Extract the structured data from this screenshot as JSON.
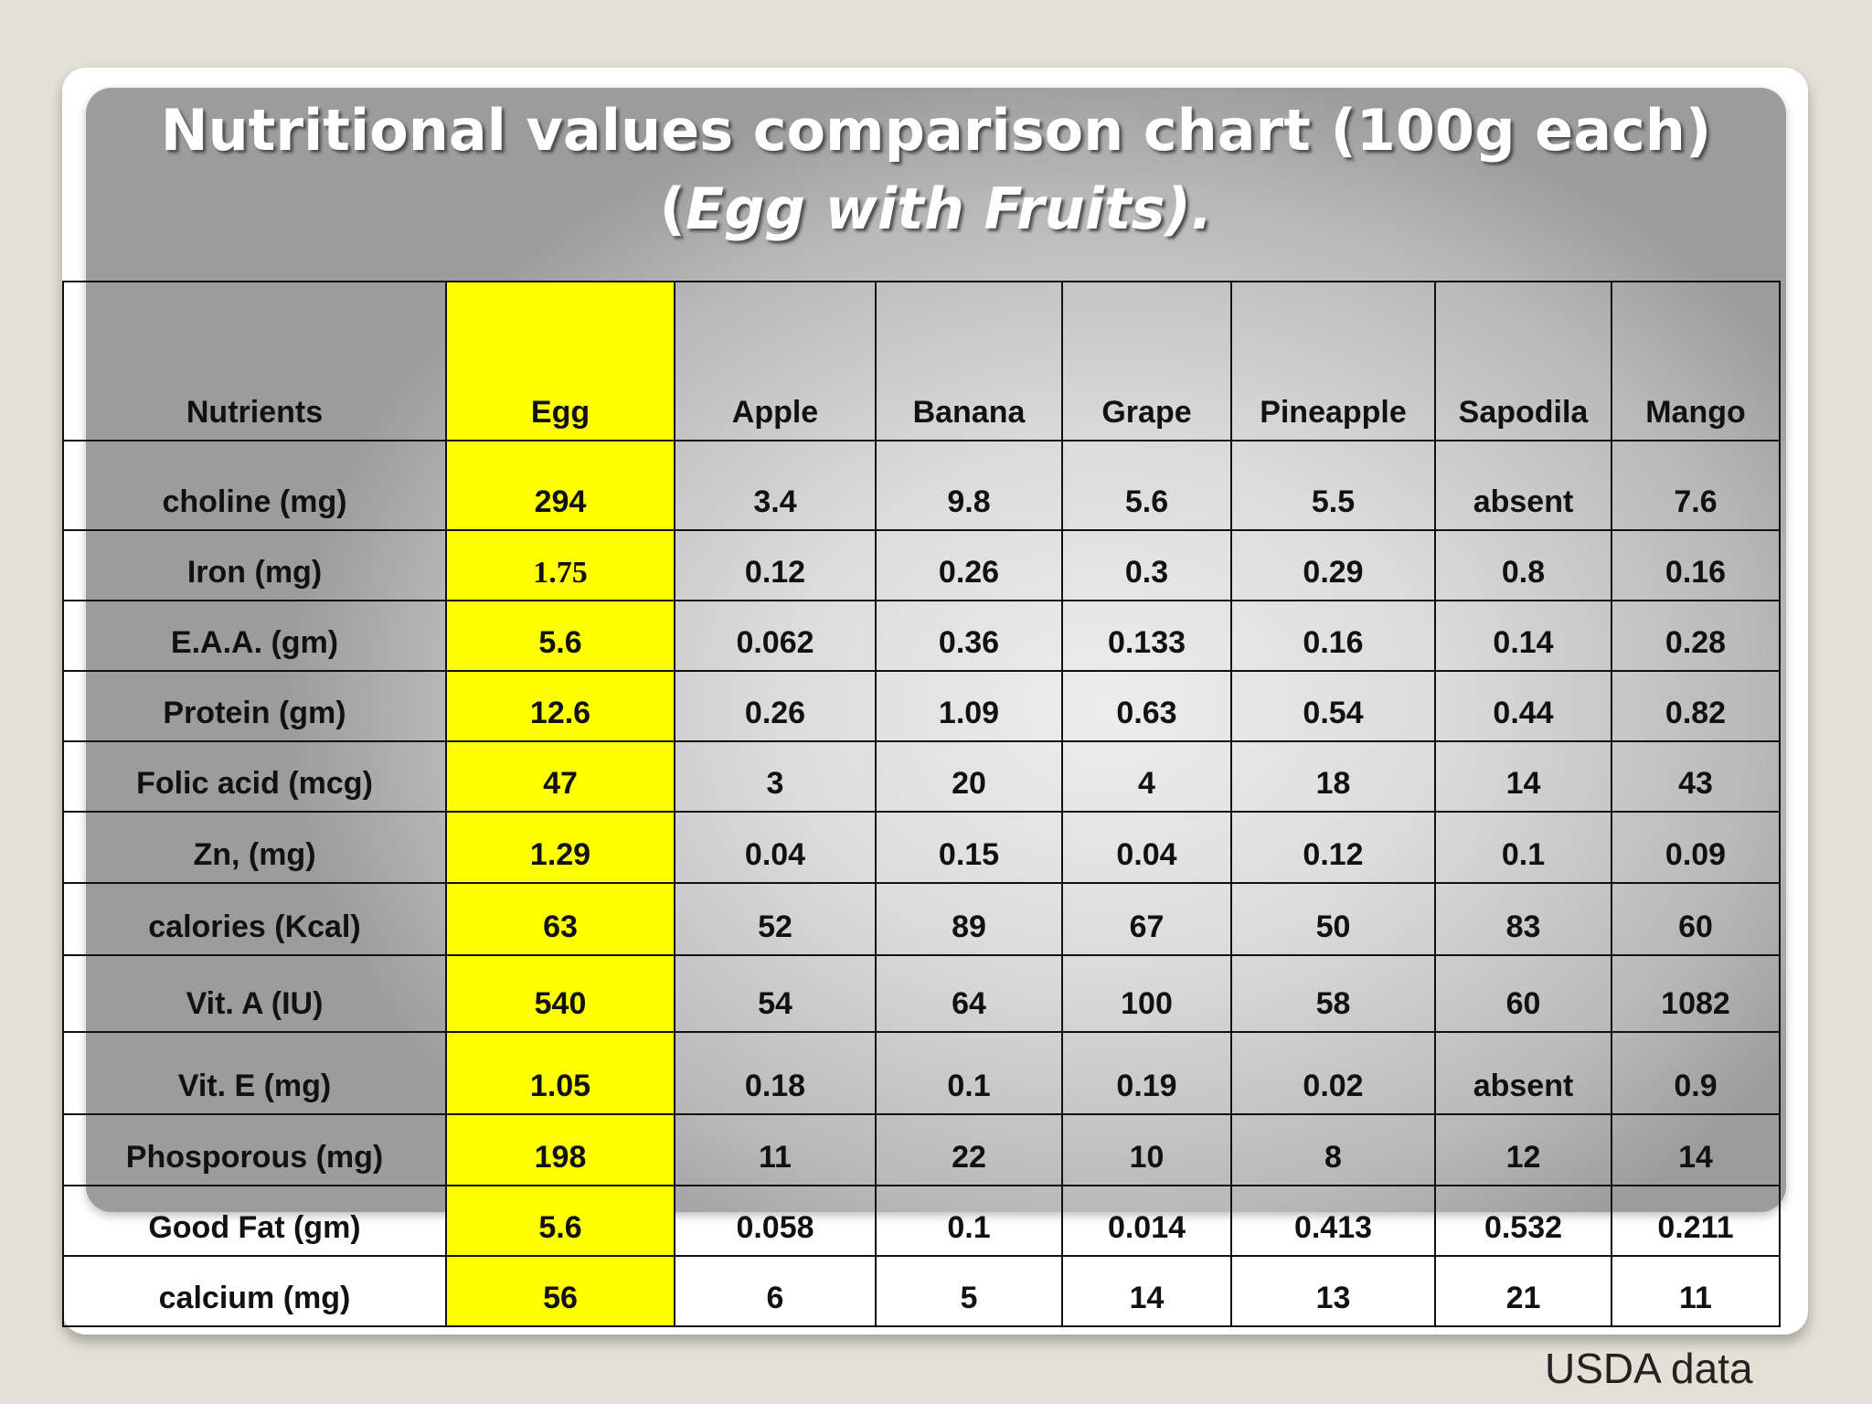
{
  "title": {
    "line1": "Nutritional values comparison chart (100g each)",
    "line2_open": "(",
    "line2_italic": "Egg with Fruits).",
    "line2_tail": ""
  },
  "table": {
    "columns": [
      "Nutrients",
      "Egg",
      "Apple",
      "Banana",
      "Grape",
      "Pineapple",
      "Sapodila",
      "Mango"
    ],
    "rows": [
      [
        "choline (mg)",
        "294",
        "3.4",
        "9.8",
        "5.6",
        "5.5",
        "absent",
        "7.6"
      ],
      [
        "Iron (mg)",
        "1.75",
        "0.12",
        "0.26",
        "0.3",
        "0.29",
        "0.8",
        "0.16"
      ],
      [
        "E.A.A. (gm)",
        "5.6",
        "0.062",
        "0.36",
        "0.133",
        "0.16",
        "0.14",
        "0.28"
      ],
      [
        "Protein (gm)",
        "12.6",
        "0.26",
        "1.09",
        "0.63",
        "0.54",
        "0.44",
        "0.82"
      ],
      [
        "Folic acid (mcg)",
        "47",
        "3",
        "20",
        "4",
        "18",
        "14",
        "43"
      ],
      [
        "Zn, (mg)",
        "1.29",
        "0.04",
        "0.15",
        "0.04",
        "0.12",
        "0.1",
        "0.09"
      ],
      [
        "calories (Kcal)",
        "63",
        "52",
        "89",
        "67",
        "50",
        "83",
        "60"
      ],
      [
        "Vit. A (IU)",
        "540",
        "54",
        "64",
        "100",
        "58",
        "60",
        "1082"
      ],
      [
        "Vit. E (mg)",
        "1.05",
        "0.18",
        "0.1",
        "0.19",
        "0.02",
        "absent",
        "0.9"
      ],
      [
        "Phosporous (mg)",
        "198",
        "11",
        "22",
        "10",
        "8",
        "12",
        "14"
      ],
      [
        "Good Fat (gm)",
        "5.6",
        "0.058",
        "0.1",
        "0.014",
        "0.413",
        "0.532",
        "0.211"
      ],
      [
        "calcium (mg)",
        "56",
        "6",
        "5",
        "14",
        "13",
        "21",
        "11"
      ]
    ]
  },
  "source": "USDA data",
  "colors": {
    "egg_highlight": "#ffff00",
    "background": "#e3e1d6"
  }
}
